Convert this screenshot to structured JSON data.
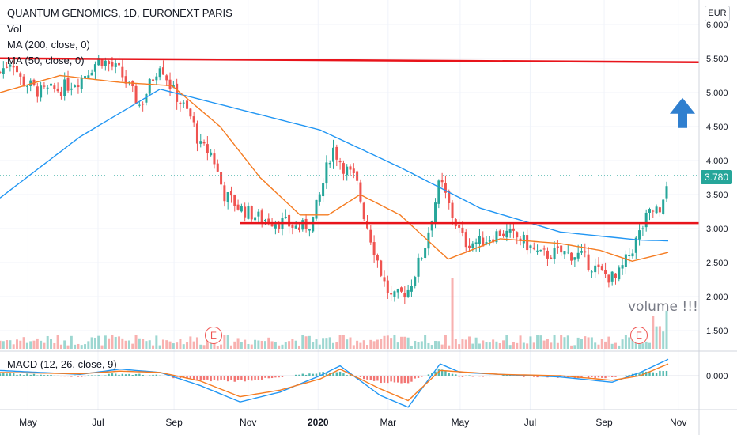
{
  "legend": {
    "title": "QUANTUM GENOMICS, 1D, EURONEXT PARIS",
    "volume": "Vol",
    "ma200": "MA (200, close, 0)",
    "ma50": "MA (50, close, 0)",
    "macd": "MACD (12, 26, close, 9)"
  },
  "currency": "EUR",
  "last_price_label": "3.780",
  "annotation": "volume !!!",
  "earnings_marker": "E",
  "colors": {
    "up": "#26a69a",
    "down": "#ef5350",
    "ma200": "#2196f3",
    "ma50": "#f57c22",
    "hline": "#e8141b",
    "arrow": "#2f7fcf",
    "macd_line": "#2196f3",
    "signal_line": "#f57c22"
  },
  "chart_data": {
    "type": "candlestick",
    "price_axis": {
      "ticks": [
        1.5,
        2.0,
        2.5,
        3.0,
        3.5,
        4.0,
        4.5,
        5.0,
        5.5,
        6.0
      ],
      "tick_labels": [
        "1.500",
        "2.000",
        "2.500",
        "3.000",
        "3.500",
        "4.000",
        "4.500",
        "5.000",
        "5.500",
        "6.000"
      ]
    },
    "macd_axis": {
      "ticks": [
        0.0
      ],
      "tick_labels": [
        "0.000"
      ]
    },
    "time_axis": {
      "labels": [
        "May",
        "Jul",
        "Sep",
        "Nov",
        "2020",
        "Mar",
        "May",
        "Jul",
        "Sep",
        "Nov"
      ]
    },
    "close_series": [
      {
        "t": 0.0,
        "v": 5.3
      },
      {
        "t": 0.3,
        "v": 5.5
      },
      {
        "t": 0.5,
        "v": 5.2
      },
      {
        "t": 1.0,
        "v": 5.0
      },
      {
        "t": 1.5,
        "v": 5.05
      },
      {
        "t": 2.0,
        "v": 5.2
      },
      {
        "t": 2.5,
        "v": 5.5
      },
      {
        "t": 3.0,
        "v": 5.3
      },
      {
        "t": 3.5,
        "v": 4.8
      },
      {
        "t": 4.0,
        "v": 5.45
      },
      {
        "t": 4.3,
        "v": 5.05
      },
      {
        "t": 4.8,
        "v": 4.6
      },
      {
        "t": 5.0,
        "v": 4.2
      },
      {
        "t": 5.3,
        "v": 4.1
      },
      {
        "t": 5.6,
        "v": 3.5
      },
      {
        "t": 6.0,
        "v": 3.3
      },
      {
        "t": 6.5,
        "v": 3.15
      },
      {
        "t": 7.0,
        "v": 3.1
      },
      {
        "t": 7.5,
        "v": 3.0
      },
      {
        "t": 7.8,
        "v": 3.1
      },
      {
        "t": 8.0,
        "v": 3.5
      },
      {
        "t": 8.3,
        "v": 4.2
      },
      {
        "t": 8.6,
        "v": 3.9
      },
      {
        "t": 8.9,
        "v": 3.7
      },
      {
        "t": 9.1,
        "v": 3.2
      },
      {
        "t": 9.4,
        "v": 2.6
      },
      {
        "t": 9.6,
        "v": 2.2
      },
      {
        "t": 9.8,
        "v": 1.95
      },
      {
        "t": 10.2,
        "v": 2.1
      },
      {
        "t": 10.6,
        "v": 2.7
      },
      {
        "t": 11.0,
        "v": 3.7
      },
      {
        "t": 11.3,
        "v": 3.2
      },
      {
        "t": 11.6,
        "v": 2.8
      },
      {
        "t": 12.0,
        "v": 2.8
      },
      {
        "t": 12.5,
        "v": 2.95
      },
      {
        "t": 13.0,
        "v": 2.85
      },
      {
        "t": 13.5,
        "v": 2.6
      },
      {
        "t": 14.0,
        "v": 2.65
      },
      {
        "t": 14.5,
        "v": 2.6
      },
      {
        "t": 15.0,
        "v": 2.35
      },
      {
        "t": 15.4,
        "v": 2.25
      },
      {
        "t": 15.8,
        "v": 2.7
      },
      {
        "t": 16.2,
        "v": 3.2
      },
      {
        "t": 16.5,
        "v": 3.35
      },
      {
        "t": 16.7,
        "v": 3.78
      }
    ],
    "ma200_series": [
      {
        "t": 0.0,
        "v": 3.45
      },
      {
        "t": 2.0,
        "v": 4.35
      },
      {
        "t": 4.0,
        "v": 5.05
      },
      {
        "t": 6.0,
        "v": 4.75
      },
      {
        "t": 8.0,
        "v": 4.45
      },
      {
        "t": 10.0,
        "v": 3.9
      },
      {
        "t": 12.0,
        "v": 3.3
      },
      {
        "t": 14.0,
        "v": 2.95
      },
      {
        "t": 16.0,
        "v": 2.83
      },
      {
        "t": 16.7,
        "v": 2.82
      }
    ],
    "ma50_series": [
      {
        "t": 0.0,
        "v": 5.0
      },
      {
        "t": 1.5,
        "v": 5.25
      },
      {
        "t": 3.0,
        "v": 5.15
      },
      {
        "t": 4.3,
        "v": 5.1
      },
      {
        "t": 5.5,
        "v": 4.5
      },
      {
        "t": 6.5,
        "v": 3.75
      },
      {
        "t": 7.5,
        "v": 3.2
      },
      {
        "t": 8.2,
        "v": 3.2
      },
      {
        "t": 9.0,
        "v": 3.5
      },
      {
        "t": 10.0,
        "v": 3.2
      },
      {
        "t": 11.2,
        "v": 2.55
      },
      {
        "t": 12.5,
        "v": 2.85
      },
      {
        "t": 14.0,
        "v": 2.78
      },
      {
        "t": 15.0,
        "v": 2.68
      },
      {
        "t": 15.8,
        "v": 2.52
      },
      {
        "t": 16.7,
        "v": 2.65
      }
    ],
    "horizontal_lines": [
      5.48,
      3.08
    ],
    "arrow_up_at": 4.55,
    "macd_series": [
      {
        "t": 0.0,
        "v": 0.08
      },
      {
        "t": 2.0,
        "v": 0.02
      },
      {
        "t": 3.0,
        "v": 0.1
      },
      {
        "t": 4.0,
        "v": 0.05
      },
      {
        "t": 5.0,
        "v": -0.15
      },
      {
        "t": 6.0,
        "v": -0.4
      },
      {
        "t": 7.0,
        "v": -0.25
      },
      {
        "t": 8.0,
        "v": 0.0
      },
      {
        "t": 8.5,
        "v": 0.15
      },
      {
        "t": 9.5,
        "v": -0.3
      },
      {
        "t": 10.2,
        "v": -0.48
      },
      {
        "t": 11.0,
        "v": 0.18
      },
      {
        "t": 11.5,
        "v": 0.05
      },
      {
        "t": 12.5,
        "v": 0.02
      },
      {
        "t": 14.0,
        "v": -0.02
      },
      {
        "t": 15.3,
        "v": -0.1
      },
      {
        "t": 16.0,
        "v": 0.05
      },
      {
        "t": 16.7,
        "v": 0.25
      }
    ],
    "signal_series": [
      {
        "t": 0.0,
        "v": 0.05
      },
      {
        "t": 2.0,
        "v": 0.03
      },
      {
        "t": 3.0,
        "v": 0.07
      },
      {
        "t": 4.0,
        "v": 0.05
      },
      {
        "t": 5.0,
        "v": -0.08
      },
      {
        "t": 6.0,
        "v": -0.32
      },
      {
        "t": 7.0,
        "v": -0.22
      },
      {
        "t": 8.0,
        "v": -0.05
      },
      {
        "t": 8.5,
        "v": 0.1
      },
      {
        "t": 9.5,
        "v": -0.2
      },
      {
        "t": 10.2,
        "v": -0.38
      },
      {
        "t": 11.0,
        "v": 0.08
      },
      {
        "t": 11.5,
        "v": 0.06
      },
      {
        "t": 12.5,
        "v": 0.02
      },
      {
        "t": 14.0,
        "v": 0.0
      },
      {
        "t": 15.3,
        "v": -0.07
      },
      {
        "t": 16.0,
        "v": 0.0
      },
      {
        "t": 16.7,
        "v": 0.18
      }
    ]
  }
}
